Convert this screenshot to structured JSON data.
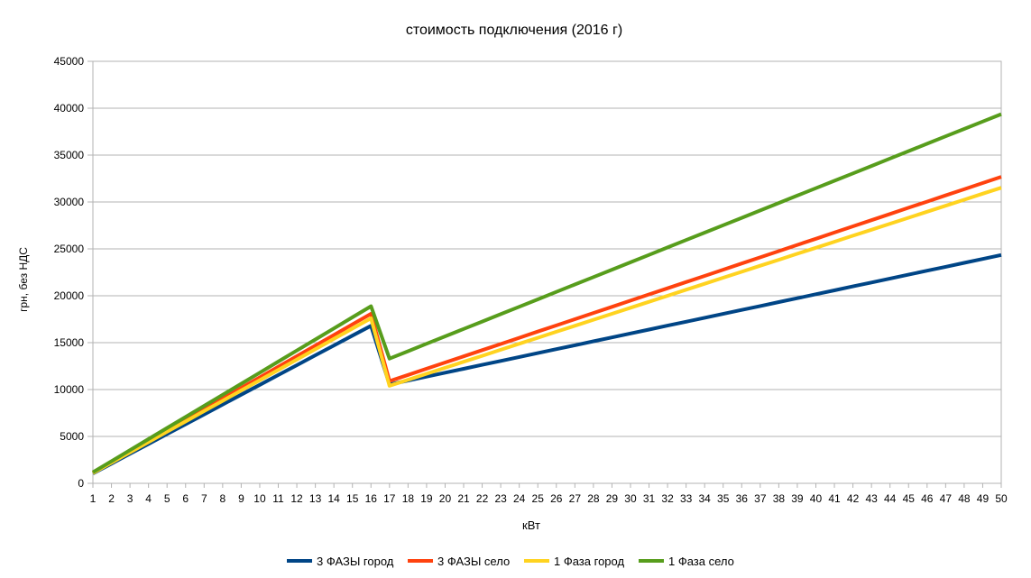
{
  "chart_data": {
    "type": "line",
    "title": "стоимость подключения (2016 г)",
    "xlabel": "кВт",
    "ylabel": "грн, без НДС",
    "ylim": [
      0,
      45000
    ],
    "yticks": [
      0,
      5000,
      10000,
      15000,
      20000,
      25000,
      30000,
      35000,
      40000,
      45000
    ],
    "grid": true,
    "legend_position": "bottom",
    "x": [
      1,
      2,
      3,
      4,
      5,
      6,
      7,
      8,
      9,
      10,
      11,
      12,
      13,
      14,
      15,
      16,
      17,
      18,
      19,
      20,
      21,
      22,
      23,
      24,
      25,
      26,
      27,
      28,
      29,
      30,
      31,
      32,
      33,
      34,
      35,
      36,
      37,
      38,
      39,
      40,
      41,
      42,
      43,
      44,
      45,
      46,
      47,
      48,
      49,
      50
    ],
    "series": [
      {
        "name": "3 ФАЗЫ город",
        "color": "#004586",
        "values": [
          1050,
          2100,
          3150,
          4200,
          5250,
          6300,
          7350,
          8400,
          9450,
          10500,
          11550,
          12600,
          13650,
          14700,
          15750,
          16800,
          10540,
          10958,
          11377,
          11795,
          12213,
          12632,
          13050,
          13468,
          13887,
          14305,
          14723,
          15142,
          15560,
          15978,
          16396,
          16815,
          17233,
          17651,
          18070,
          18488,
          18906,
          19325,
          19743,
          20161,
          20580,
          20998,
          21416,
          21835,
          22253,
          22671,
          23090,
          23508,
          23926,
          24345
        ]
      },
      {
        "name": "3 ФАЗЫ село",
        "color": "#ff420e",
        "values": [
          1130,
          2260,
          3390,
          4520,
          5650,
          6780,
          7910,
          9040,
          10170,
          11300,
          12430,
          13560,
          14690,
          15820,
          16950,
          18080,
          10900,
          11560,
          12220,
          12880,
          13540,
          14200,
          14860,
          15520,
          16180,
          16840,
          17500,
          18160,
          18820,
          19480,
          20140,
          20800,
          21460,
          22120,
          22780,
          23440,
          24100,
          24760,
          25420,
          26080,
          26740,
          27400,
          28060,
          28720,
          29380,
          30040,
          30700,
          31360,
          32020,
          32680
        ]
      },
      {
        "name": "1 Фаза город",
        "color": "#ffd320",
        "values": [
          1100,
          2200,
          3300,
          4400,
          5500,
          6600,
          7700,
          8800,
          9900,
          11000,
          12100,
          13200,
          14300,
          15400,
          16500,
          17600,
          10400,
          11040,
          11680,
          12320,
          12960,
          13600,
          14240,
          14880,
          15520,
          16160,
          16800,
          17440,
          18080,
          18720,
          19360,
          20000,
          20640,
          21280,
          21920,
          22560,
          23200,
          23840,
          24480,
          25120,
          25760,
          26400,
          27040,
          27680,
          28320,
          28960,
          29600,
          30240,
          30880,
          31520
        ]
      },
      {
        "name": "1 Фаза село",
        "color": "#579d1c",
        "values": [
          1180,
          2360,
          3540,
          4720,
          5900,
          7080,
          8260,
          9440,
          10620,
          11800,
          12980,
          14160,
          15340,
          16520,
          17700,
          18880,
          13300,
          14090,
          14880,
          15670,
          16460,
          17250,
          18040,
          18830,
          19620,
          20410,
          21200,
          21990,
          22780,
          23570,
          24360,
          25150,
          25940,
          26730,
          27520,
          28310,
          29100,
          29890,
          30680,
          31470,
          32260,
          33050,
          33840,
          34630,
          35420,
          36210,
          37000,
          37790,
          38580,
          39370
        ]
      }
    ]
  }
}
